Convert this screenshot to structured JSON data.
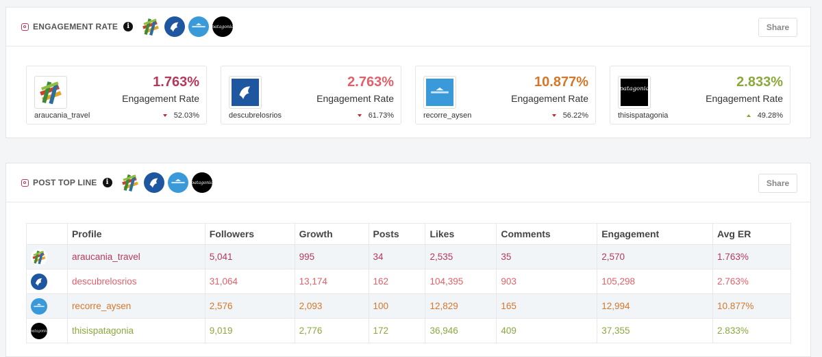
{
  "engagement_panel": {
    "title": "ENGAGEMENT RATE",
    "info": "i",
    "share_label": "Share",
    "cards": [
      {
        "pct": "1.763%",
        "label": "Engagement Rate",
        "handle": "araucania_travel",
        "change": "52.03%",
        "direction": "down",
        "color": "#b3395a"
      },
      {
        "pct": "2.763%",
        "label": "Engagement Rate",
        "handle": "descubrelosrios",
        "change": "61.73%",
        "direction": "down",
        "color": "#e0606a"
      },
      {
        "pct": "10.877%",
        "label": "Engagement Rate",
        "handle": "recorre_aysen",
        "change": "56.22%",
        "direction": "down",
        "color": "#d4772a"
      },
      {
        "pct": "2.833%",
        "label": "Engagement Rate",
        "handle": "thisispatagonia",
        "change": "49.28%",
        "direction": "up",
        "color": "#8aa83c"
      }
    ]
  },
  "post_panel": {
    "title": "POST TOP LINE",
    "info": "i",
    "share_label": "Share",
    "columns": [
      "",
      "Profile",
      "Followers",
      "Growth",
      "Posts",
      "Likes",
      "Comments",
      "Engagement",
      "Avg ER"
    ],
    "rows": [
      {
        "profile": "araucania_travel",
        "followers": "5,041",
        "growth": "995",
        "posts": "34",
        "likes": "2,535",
        "comments": "35",
        "engagement": "2,570",
        "avg_er": "1.763%",
        "color": "#b3395a"
      },
      {
        "profile": "descubrelosrios",
        "followers": "31,064",
        "growth": "13,174",
        "posts": "162",
        "likes": "104,395",
        "comments": "903",
        "engagement": "105,298",
        "avg_er": "2.763%",
        "color": "#e0606a"
      },
      {
        "profile": "recorre_aysen",
        "followers": "2,576",
        "growth": "2,093",
        "posts": "100",
        "likes": "12,829",
        "comments": "165",
        "engagement": "12,994",
        "avg_er": "10.877%",
        "color": "#d4772a"
      },
      {
        "profile": "thisispatagonia",
        "followers": "9,019",
        "growth": "2,776",
        "posts": "172",
        "likes": "36,946",
        "comments": "409",
        "engagement": "37,355",
        "avg_er": "2.833%",
        "color": "#8aa83c"
      }
    ]
  },
  "logos": {
    "thisispatagonia_text": "patagonia"
  }
}
